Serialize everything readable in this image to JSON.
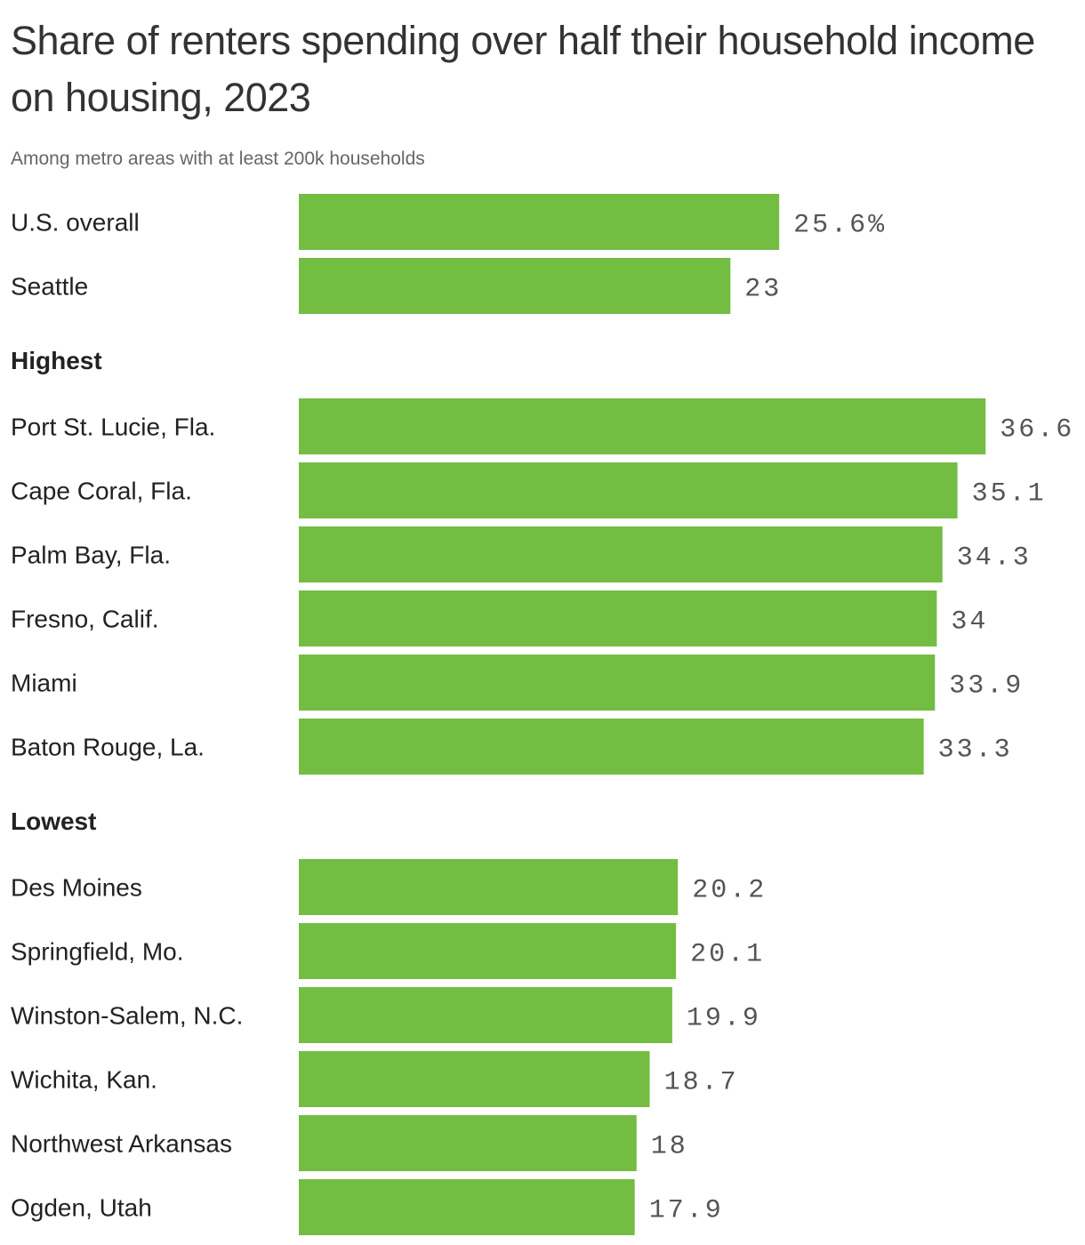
{
  "title": "Share of renters spending over half their household income on housing, 2023",
  "subtitle": "Among metro areas with at least 200k households",
  "colors": {
    "bar": "#74bd43",
    "label": "#222222",
    "value": "#555555"
  },
  "chart_data": {
    "type": "bar",
    "orientation": "horizontal",
    "unit": "%",
    "groups": [
      {
        "name": "",
        "items": [
          {
            "label": "U.S. overall",
            "value": 25.6,
            "display": "25.6%"
          },
          {
            "label": "Seattle",
            "value": 23,
            "display": "23"
          }
        ]
      },
      {
        "name": "Highest",
        "items": [
          {
            "label": "Port St. Lucie, Fla.",
            "value": 36.6,
            "display": "36.6"
          },
          {
            "label": "Cape Coral, Fla.",
            "value": 35.1,
            "display": "35.1"
          },
          {
            "label": "Palm Bay, Fla.",
            "value": 34.3,
            "display": "34.3"
          },
          {
            "label": "Fresno, Calif.",
            "value": 34,
            "display": "34"
          },
          {
            "label": "Miami",
            "value": 33.9,
            "display": "33.9"
          },
          {
            "label": "Baton Rouge, La.",
            "value": 33.3,
            "display": "33.3"
          }
        ]
      },
      {
        "name": "Lowest",
        "items": [
          {
            "label": "Des Moines",
            "value": 20.2,
            "display": "20.2"
          },
          {
            "label": "Springfield, Mo.",
            "value": 20.1,
            "display": "20.1"
          },
          {
            "label": "Winston-Salem, N.C.",
            "value": 19.9,
            "display": "19.9"
          },
          {
            "label": "Wichita, Kan.",
            "value": 18.7,
            "display": "18.7"
          },
          {
            "label": "Northwest Arkansas",
            "value": 18,
            "display": "18"
          },
          {
            "label": "Ogden, Utah",
            "value": 17.9,
            "display": "17.9"
          }
        ]
      }
    ]
  }
}
